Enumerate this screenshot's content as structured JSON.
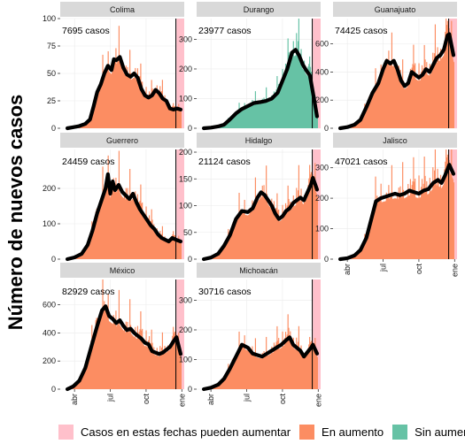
{
  "chart_data": {
    "type": "bar",
    "ylabel": "Número de nuevos casos",
    "x_tick_labels": [
      "abr",
      "jul",
      "oct",
      "ene"
    ],
    "x_tick_months": [
      4,
      7,
      10,
      13
    ],
    "x_range_months": [
      2.8,
      13.2
    ],
    "vline_month": 12.5,
    "uncertain_start_month": 12.55,
    "colors": {
      "uncertain": "#ffc0cb",
      "increase": "#fc8d62",
      "no_increase": "#66c2a5",
      "trend": "#000000",
      "strip": "#d9d9d9",
      "grid": "#ebebeb"
    },
    "legend": [
      {
        "key": "uncertain",
        "label": "Casos en estas fechas pueden aumentar"
      },
      {
        "key": "increase",
        "label": "En aumento"
      },
      {
        "key": "no_increase",
        "label": "Sin aumento"
      }
    ],
    "panels": [
      {
        "name": "Colima",
        "total_label": "7695 casos",
        "ymax": 100,
        "yticks": [
          0,
          25,
          50,
          75,
          100
        ],
        "color": "increase",
        "series": [
          {
            "m": 3.4,
            "v": 0
          },
          {
            "m": 3.9,
            "v": 1
          },
          {
            "m": 4.4,
            "v": 2
          },
          {
            "m": 4.9,
            "v": 4
          },
          {
            "m": 5.3,
            "v": 8
          },
          {
            "m": 5.6,
            "v": 20
          },
          {
            "m": 5.9,
            "v": 33
          },
          {
            "m": 6.2,
            "v": 40
          },
          {
            "m": 6.5,
            "v": 50
          },
          {
            "m": 6.8,
            "v": 57
          },
          {
            "m": 7.1,
            "v": 53
          },
          {
            "m": 7.3,
            "v": 63
          },
          {
            "m": 7.5,
            "v": 62
          },
          {
            "m": 7.8,
            "v": 65
          },
          {
            "m": 8.1,
            "v": 55
          },
          {
            "m": 8.4,
            "v": 49
          },
          {
            "m": 8.7,
            "v": 47
          },
          {
            "m": 9.0,
            "v": 50
          },
          {
            "m": 9.3,
            "v": 46
          },
          {
            "m": 9.6,
            "v": 36
          },
          {
            "m": 9.9,
            "v": 30
          },
          {
            "m": 10.2,
            "v": 28
          },
          {
            "m": 10.5,
            "v": 30
          },
          {
            "m": 10.8,
            "v": 35
          },
          {
            "m": 11.1,
            "v": 32
          },
          {
            "m": 11.4,
            "v": 27
          },
          {
            "m": 11.7,
            "v": 25
          },
          {
            "m": 12.0,
            "v": 18
          },
          {
            "m": 12.3,
            "v": 17
          },
          {
            "m": 12.6,
            "v": 18
          },
          {
            "m": 12.9,
            "v": 17
          }
        ]
      },
      {
        "name": "Durango",
        "total_label": "23977 casos",
        "ymax": 370,
        "yticks": [
          0,
          100,
          200,
          300
        ],
        "color": "no_increase",
        "series": [
          {
            "m": 3.4,
            "v": 0
          },
          {
            "m": 4.0,
            "v": 2
          },
          {
            "m": 4.6,
            "v": 6
          },
          {
            "m": 5.1,
            "v": 12
          },
          {
            "m": 5.6,
            "v": 30
          },
          {
            "m": 6.1,
            "v": 50
          },
          {
            "m": 6.6,
            "v": 65
          },
          {
            "m": 7.1,
            "v": 75
          },
          {
            "m": 7.6,
            "v": 85
          },
          {
            "m": 8.1,
            "v": 88
          },
          {
            "m": 8.6,
            "v": 92
          },
          {
            "m": 9.1,
            "v": 100
          },
          {
            "m": 9.6,
            "v": 120
          },
          {
            "m": 10.0,
            "v": 160
          },
          {
            "m": 10.4,
            "v": 200
          },
          {
            "m": 10.8,
            "v": 255
          },
          {
            "m": 11.1,
            "v": 265
          },
          {
            "m": 11.4,
            "v": 245
          },
          {
            "m": 11.7,
            "v": 215
          },
          {
            "m": 12.0,
            "v": 195
          },
          {
            "m": 12.3,
            "v": 178
          },
          {
            "m": 12.6,
            "v": 110
          },
          {
            "m": 12.9,
            "v": 40
          }
        ]
      },
      {
        "name": "Guanajuato",
        "total_label": "74425 casos",
        "ymax": 780,
        "yticks": [
          0,
          200,
          400,
          600
        ],
        "color": "increase",
        "series": [
          {
            "m": 3.4,
            "v": 0
          },
          {
            "m": 4.0,
            "v": 8
          },
          {
            "m": 4.6,
            "v": 25
          },
          {
            "m": 5.1,
            "v": 60
          },
          {
            "m": 5.6,
            "v": 150
          },
          {
            "m": 6.1,
            "v": 250
          },
          {
            "m": 6.6,
            "v": 320
          },
          {
            "m": 7.0,
            "v": 420
          },
          {
            "m": 7.3,
            "v": 480
          },
          {
            "m": 7.6,
            "v": 460
          },
          {
            "m": 7.9,
            "v": 480
          },
          {
            "m": 8.2,
            "v": 420
          },
          {
            "m": 8.5,
            "v": 340
          },
          {
            "m": 8.8,
            "v": 300
          },
          {
            "m": 9.1,
            "v": 320
          },
          {
            "m": 9.4,
            "v": 400
          },
          {
            "m": 9.7,
            "v": 380
          },
          {
            "m": 10.0,
            "v": 360
          },
          {
            "m": 10.3,
            "v": 380
          },
          {
            "m": 10.6,
            "v": 420
          },
          {
            "m": 10.9,
            "v": 400
          },
          {
            "m": 11.2,
            "v": 450
          },
          {
            "m": 11.5,
            "v": 500
          },
          {
            "m": 11.8,
            "v": 520
          },
          {
            "m": 12.1,
            "v": 560
          },
          {
            "m": 12.4,
            "v": 660
          },
          {
            "m": 12.55,
            "v": 670
          },
          {
            "m": 12.9,
            "v": 520
          }
        ]
      },
      {
        "name": "Guerrero",
        "total_label": "24459 casos",
        "ymax": 310,
        "yticks": [
          0,
          100,
          200
        ],
        "color": "increase",
        "series": [
          {
            "m": 3.4,
            "v": 0
          },
          {
            "m": 4.0,
            "v": 5
          },
          {
            "m": 4.6,
            "v": 15
          },
          {
            "m": 5.1,
            "v": 40
          },
          {
            "m": 5.5,
            "v": 80
          },
          {
            "m": 5.9,
            "v": 130
          },
          {
            "m": 6.3,
            "v": 170
          },
          {
            "m": 6.6,
            "v": 200
          },
          {
            "m": 6.8,
            "v": 240
          },
          {
            "m": 7.0,
            "v": 185
          },
          {
            "m": 7.2,
            "v": 220
          },
          {
            "m": 7.4,
            "v": 195
          },
          {
            "m": 7.7,
            "v": 210
          },
          {
            "m": 8.0,
            "v": 190
          },
          {
            "m": 8.3,
            "v": 180
          },
          {
            "m": 8.6,
            "v": 170
          },
          {
            "m": 8.9,
            "v": 185
          },
          {
            "m": 9.2,
            "v": 160
          },
          {
            "m": 9.5,
            "v": 140
          },
          {
            "m": 9.8,
            "v": 125
          },
          {
            "m": 10.1,
            "v": 110
          },
          {
            "m": 10.4,
            "v": 95
          },
          {
            "m": 10.7,
            "v": 85
          },
          {
            "m": 11.0,
            "v": 70
          },
          {
            "m": 11.3,
            "v": 60
          },
          {
            "m": 11.6,
            "v": 55
          },
          {
            "m": 11.9,
            "v": 50
          },
          {
            "m": 12.2,
            "v": 60
          },
          {
            "m": 12.5,
            "v": 55
          },
          {
            "m": 12.9,
            "v": 50
          }
        ]
      },
      {
        "name": "Hidalgo",
        "total_label": "21124 casos",
        "ymax": 205,
        "yticks": [
          0,
          50,
          100,
          150,
          200
        ],
        "color": "increase",
        "series": [
          {
            "m": 3.4,
            "v": 0
          },
          {
            "m": 4.0,
            "v": 3
          },
          {
            "m": 4.6,
            "v": 10
          },
          {
            "m": 5.1,
            "v": 25
          },
          {
            "m": 5.6,
            "v": 45
          },
          {
            "m": 6.1,
            "v": 75
          },
          {
            "m": 6.6,
            "v": 90
          },
          {
            "m": 7.1,
            "v": 88
          },
          {
            "m": 7.5,
            "v": 95
          },
          {
            "m": 7.9,
            "v": 115
          },
          {
            "m": 8.2,
            "v": 125
          },
          {
            "m": 8.5,
            "v": 120
          },
          {
            "m": 8.8,
            "v": 110
          },
          {
            "m": 9.1,
            "v": 100
          },
          {
            "m": 9.4,
            "v": 85
          },
          {
            "m": 9.7,
            "v": 75
          },
          {
            "m": 10.0,
            "v": 80
          },
          {
            "m": 10.3,
            "v": 90
          },
          {
            "m": 10.6,
            "v": 95
          },
          {
            "m": 10.9,
            "v": 105
          },
          {
            "m": 11.2,
            "v": 110
          },
          {
            "m": 11.5,
            "v": 115
          },
          {
            "m": 11.8,
            "v": 110
          },
          {
            "m": 12.1,
            "v": 125
          },
          {
            "m": 12.4,
            "v": 140
          },
          {
            "m": 12.55,
            "v": 152
          },
          {
            "m": 12.9,
            "v": 130
          }
        ]
      },
      {
        "name": "Jalisco",
        "total_label": "47021 casos",
        "ymax": 360,
        "yticks": [
          0,
          100,
          200,
          300
        ],
        "color": "increase",
        "series": [
          {
            "m": 3.4,
            "v": 0
          },
          {
            "m": 4.0,
            "v": 3
          },
          {
            "m": 4.6,
            "v": 12
          },
          {
            "m": 5.1,
            "v": 30
          },
          {
            "m": 5.6,
            "v": 70
          },
          {
            "m": 6.0,
            "v": 130
          },
          {
            "m": 6.4,
            "v": 190
          },
          {
            "m": 6.8,
            "v": 200
          },
          {
            "m": 7.2,
            "v": 205
          },
          {
            "m": 7.6,
            "v": 210
          },
          {
            "m": 8.0,
            "v": 215
          },
          {
            "m": 8.4,
            "v": 210
          },
          {
            "m": 8.8,
            "v": 215
          },
          {
            "m": 9.2,
            "v": 225
          },
          {
            "m": 9.6,
            "v": 220
          },
          {
            "m": 10.0,
            "v": 215
          },
          {
            "m": 10.4,
            "v": 225
          },
          {
            "m": 10.8,
            "v": 230
          },
          {
            "m": 11.2,
            "v": 250
          },
          {
            "m": 11.6,
            "v": 260
          },
          {
            "m": 11.9,
            "v": 250
          },
          {
            "m": 12.2,
            "v": 275
          },
          {
            "m": 12.55,
            "v": 310
          },
          {
            "m": 12.9,
            "v": 280
          }
        ]
      },
      {
        "name": "México",
        "total_label": "82929 casos",
        "ymax": 780,
        "yticks": [
          0,
          200,
          400,
          600
        ],
        "color": "increase",
        "series": [
          {
            "m": 3.4,
            "v": 0
          },
          {
            "m": 3.9,
            "v": 20
          },
          {
            "m": 4.4,
            "v": 60
          },
          {
            "m": 4.9,
            "v": 150
          },
          {
            "m": 5.4,
            "v": 300
          },
          {
            "m": 5.9,
            "v": 450
          },
          {
            "m": 6.3,
            "v": 560
          },
          {
            "m": 6.6,
            "v": 590
          },
          {
            "m": 6.9,
            "v": 520
          },
          {
            "m": 7.2,
            "v": 500
          },
          {
            "m": 7.5,
            "v": 470
          },
          {
            "m": 7.8,
            "v": 490
          },
          {
            "m": 8.1,
            "v": 450
          },
          {
            "m": 8.4,
            "v": 420
          },
          {
            "m": 8.7,
            "v": 430
          },
          {
            "m": 9.0,
            "v": 400
          },
          {
            "m": 9.3,
            "v": 380
          },
          {
            "m": 9.6,
            "v": 360
          },
          {
            "m": 9.9,
            "v": 330
          },
          {
            "m": 10.2,
            "v": 320
          },
          {
            "m": 10.5,
            "v": 270
          },
          {
            "m": 10.8,
            "v": 260
          },
          {
            "m": 11.1,
            "v": 250
          },
          {
            "m": 11.4,
            "v": 260
          },
          {
            "m": 11.7,
            "v": 280
          },
          {
            "m": 12.0,
            "v": 300
          },
          {
            "m": 12.3,
            "v": 340
          },
          {
            "m": 12.55,
            "v": 370
          },
          {
            "m": 12.9,
            "v": 250
          }
        ]
      },
      {
        "name": "Michoacán",
        "total_label": "30716 casos",
        "ymax": 370,
        "yticks": [
          0,
          100,
          200,
          300
        ],
        "color": "increase",
        "series": [
          {
            "m": 3.4,
            "v": 0
          },
          {
            "m": 4.0,
            "v": 5
          },
          {
            "m": 4.6,
            "v": 15
          },
          {
            "m": 5.1,
            "v": 35
          },
          {
            "m": 5.6,
            "v": 70
          },
          {
            "m": 6.1,
            "v": 110
          },
          {
            "m": 6.6,
            "v": 150
          },
          {
            "m": 7.1,
            "v": 140
          },
          {
            "m": 7.5,
            "v": 120
          },
          {
            "m": 7.9,
            "v": 115
          },
          {
            "m": 8.3,
            "v": 110
          },
          {
            "m": 8.7,
            "v": 120
          },
          {
            "m": 9.1,
            "v": 130
          },
          {
            "m": 9.5,
            "v": 140
          },
          {
            "m": 9.9,
            "v": 150
          },
          {
            "m": 10.3,
            "v": 165
          },
          {
            "m": 10.6,
            "v": 175
          },
          {
            "m": 10.9,
            "v": 150
          },
          {
            "m": 11.2,
            "v": 140
          },
          {
            "m": 11.5,
            "v": 130
          },
          {
            "m": 11.8,
            "v": 110
          },
          {
            "m": 12.1,
            "v": 125
          },
          {
            "m": 12.4,
            "v": 140
          },
          {
            "m": 12.55,
            "v": 150
          },
          {
            "m": 12.9,
            "v": 120
          }
        ]
      }
    ]
  }
}
